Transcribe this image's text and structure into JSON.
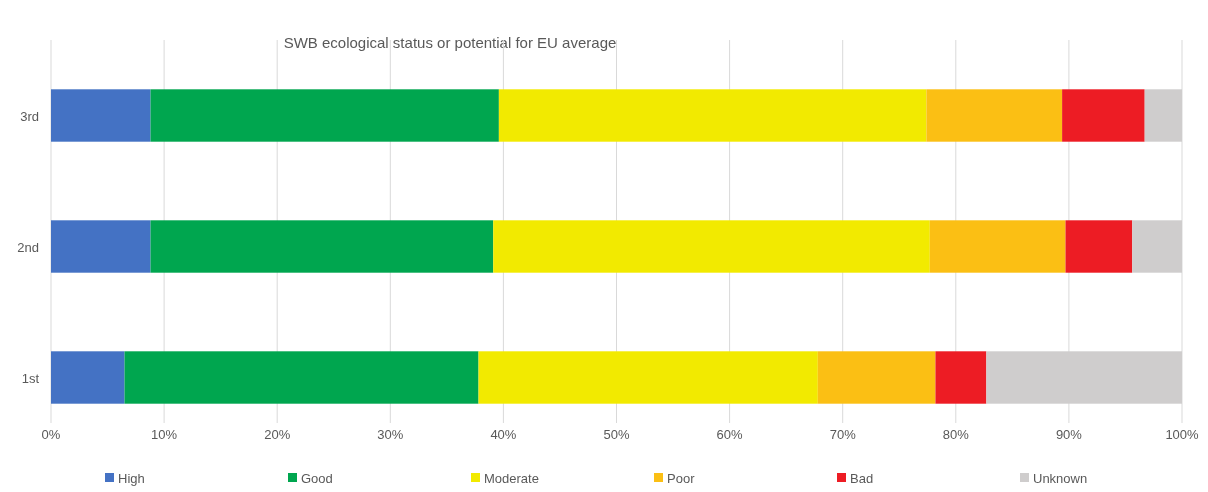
{
  "chart_data": {
    "type": "bar",
    "orientation": "horizontal",
    "stacked": true,
    "title": "SWB ecological status or potential for EU average",
    "categories": [
      "3rd",
      "2nd",
      "1st"
    ],
    "series": [
      {
        "name": "High",
        "color": "#4472c4",
        "values": [
          8.8,
          8.8,
          6.5
        ]
      },
      {
        "name": "Good",
        "color": "#00a64f",
        "values": [
          30.8,
          30.3,
          31.3
        ]
      },
      {
        "name": "Moderate",
        "color": "#f2ea00",
        "values": [
          37.8,
          38.6,
          30.0
        ]
      },
      {
        "name": "Poor",
        "color": "#fbbf14",
        "values": [
          12.0,
          12.0,
          10.4
        ]
      },
      {
        "name": "Bad",
        "color": "#ed1c24",
        "values": [
          7.3,
          5.9,
          4.5
        ]
      },
      {
        "name": "Unknown",
        "color": "#cfcdcd",
        "values": [
          3.3,
          4.4,
          17.3
        ]
      }
    ],
    "xlim": [
      0,
      100
    ],
    "xticks": [
      {
        "value": 0,
        "label": "0%"
      },
      {
        "value": 10,
        "label": "10%"
      },
      {
        "value": 20,
        "label": "20%"
      },
      {
        "value": 30,
        "label": "30%"
      },
      {
        "value": 40,
        "label": "40%"
      },
      {
        "value": 50,
        "label": "50%"
      },
      {
        "value": 60,
        "label": "60%"
      },
      {
        "value": 70,
        "label": "70%"
      },
      {
        "value": 80,
        "label": "80%"
      },
      {
        "value": 90,
        "label": "90%"
      },
      {
        "value": 100,
        "label": "100%"
      }
    ],
    "grid": "x",
    "legend": "bottom"
  }
}
